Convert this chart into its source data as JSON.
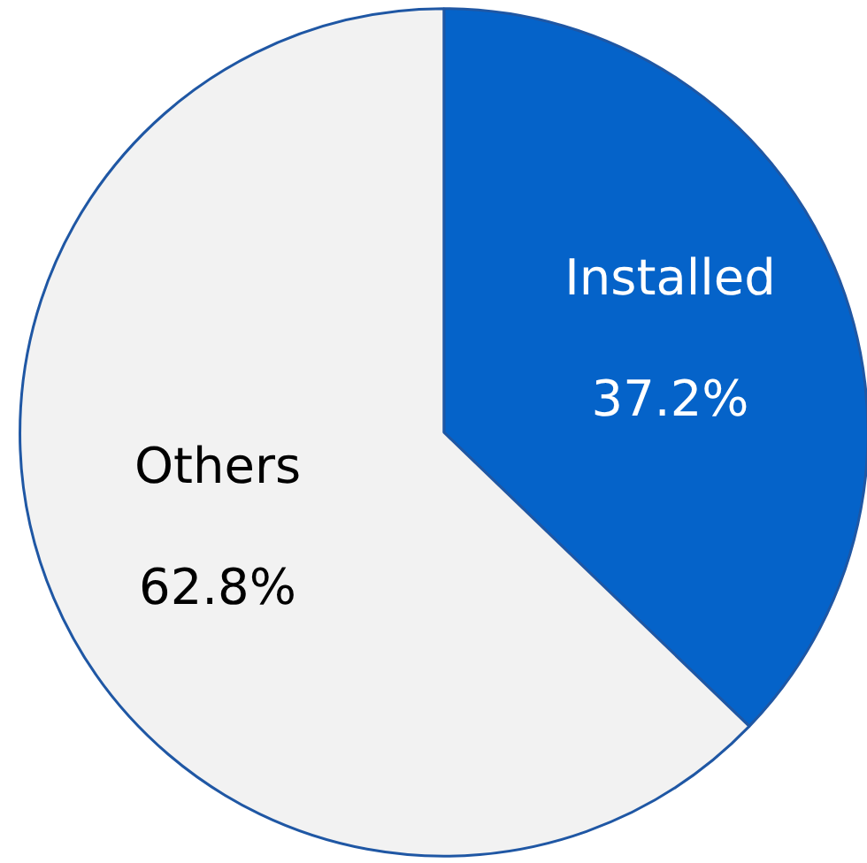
{
  "chart_data": {
    "type": "pie",
    "categories": [
      "Installed",
      "Others"
    ],
    "values": [
      37.2,
      62.8
    ],
    "colors": [
      "#0563c9",
      "#f2f2f2"
    ],
    "value_labels": [
      "37.2%",
      "62.8%"
    ]
  }
}
